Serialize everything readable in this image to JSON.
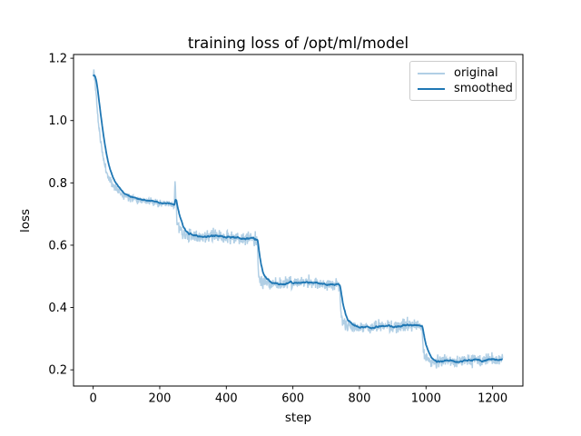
{
  "chart_data": {
    "type": "line",
    "title": "training loss of /opt/ml/model",
    "xlabel": "step",
    "ylabel": "loss",
    "xlim": [
      -59,
      1291
    ],
    "ylim": [
      0.148,
      1.212
    ],
    "xticks": [
      0,
      200,
      400,
      600,
      800,
      1000,
      1200
    ],
    "xticklabels": [
      "0",
      "200",
      "400",
      "600",
      "800",
      "1000",
      "1200"
    ],
    "yticks": [
      0.2,
      0.4,
      0.6,
      0.8,
      1.0,
      1.2
    ],
    "yticklabels": [
      "0.2",
      "0.4",
      "0.6",
      "0.8",
      "1.0",
      "1.2"
    ],
    "grid": false,
    "legend_position": "upper right",
    "x_start": 0,
    "x_end": 1230,
    "series": [
      {
        "name": "original",
        "color": "#b1cfe5",
        "width": 1.5,
        "derivation": "base_keypoints plus noise"
      },
      {
        "name": "smoothed",
        "color": "#1f77b4",
        "width": 1.8,
        "derivation": "ema of original"
      }
    ],
    "base_keypoints": [
      [
        0,
        1.14
      ],
      [
        2,
        1.16
      ],
      [
        5,
        1.13
      ],
      [
        10,
        1.07
      ],
      [
        15,
        1.0
      ],
      [
        20,
        0.955
      ],
      [
        27,
        0.9
      ],
      [
        35,
        0.855
      ],
      [
        45,
        0.82
      ],
      [
        55,
        0.8
      ],
      [
        70,
        0.78
      ],
      [
        90,
        0.762
      ],
      [
        120,
        0.752
      ],
      [
        150,
        0.745
      ],
      [
        190,
        0.737
      ],
      [
        230,
        0.73
      ],
      [
        244,
        0.727
      ],
      [
        246,
        0.815
      ],
      [
        248,
        0.76
      ],
      [
        251,
        0.7
      ],
      [
        255,
        0.665
      ],
      [
        260,
        0.65
      ],
      [
        268,
        0.64
      ],
      [
        280,
        0.632
      ],
      [
        300,
        0.628
      ],
      [
        330,
        0.627
      ],
      [
        370,
        0.629
      ],
      [
        410,
        0.625
      ],
      [
        450,
        0.621
      ],
      [
        480,
        0.62
      ],
      [
        493,
        0.621
      ],
      [
        496,
        0.52
      ],
      [
        499,
        0.49
      ],
      [
        503,
        0.483
      ],
      [
        510,
        0.479
      ],
      [
        530,
        0.477
      ],
      [
        570,
        0.477
      ],
      [
        610,
        0.479
      ],
      [
        650,
        0.48
      ],
      [
        690,
        0.477
      ],
      [
        720,
        0.475
      ],
      [
        740,
        0.477
      ],
      [
        743,
        0.4
      ],
      [
        746,
        0.37
      ],
      [
        750,
        0.352
      ],
      [
        756,
        0.344
      ],
      [
        765,
        0.34
      ],
      [
        790,
        0.337
      ],
      [
        830,
        0.336
      ],
      [
        870,
        0.339
      ],
      [
        910,
        0.341
      ],
      [
        950,
        0.342
      ],
      [
        975,
        0.34
      ],
      [
        988,
        0.338
      ],
      [
        991,
        0.27
      ],
      [
        994,
        0.248
      ],
      [
        998,
        0.238
      ],
      [
        1004,
        0.232
      ],
      [
        1012,
        0.229
      ],
      [
        1030,
        0.227
      ],
      [
        1060,
        0.227
      ],
      [
        1100,
        0.229
      ],
      [
        1140,
        0.231
      ],
      [
        1180,
        0.23
      ],
      [
        1210,
        0.231
      ],
      [
        1230,
        0.233
      ]
    ],
    "noise": {
      "seed": 11,
      "sigma_by_stage": [
        [
          0,
          0.006
        ],
        [
          246,
          0.0105
        ],
        [
          496,
          0.0105
        ],
        [
          743,
          0.0095
        ],
        [
          991,
          0.0095
        ]
      ]
    },
    "ema_alpha": 0.09,
    "plateau_summary": [
      0.73,
      0.625,
      0.478,
      0.34,
      0.23
    ],
    "axis_color": "#000000",
    "tick_font_px": 13,
    "background": "#ffffff"
  },
  "legend": {
    "items": [
      {
        "label": "original"
      },
      {
        "label": "smoothed"
      }
    ]
  }
}
